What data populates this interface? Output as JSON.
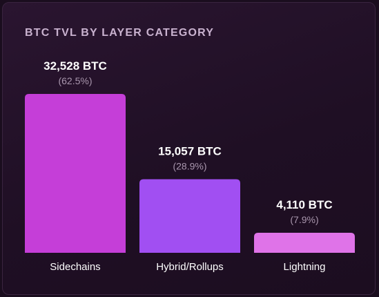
{
  "chart_data": {
    "type": "bar",
    "title": "BTC TVL BY LAYER CATEGORY",
    "categories": [
      "Sidechains",
      "Hybrid/Rollups",
      "Lightning"
    ],
    "values": [
      32528,
      15057,
      4110
    ],
    "value_labels": [
      "32,528 BTC",
      "15,057 BTC",
      "4,110 BTC"
    ],
    "percent_labels": [
      "(62.5%)",
      "(28.9%)",
      "(7.9%)"
    ],
    "colors": [
      "#c53ed8",
      "#a14ff2",
      "#df73e8"
    ],
    "ylim": [
      0,
      32528
    ],
    "grid": false,
    "legend": "none"
  }
}
